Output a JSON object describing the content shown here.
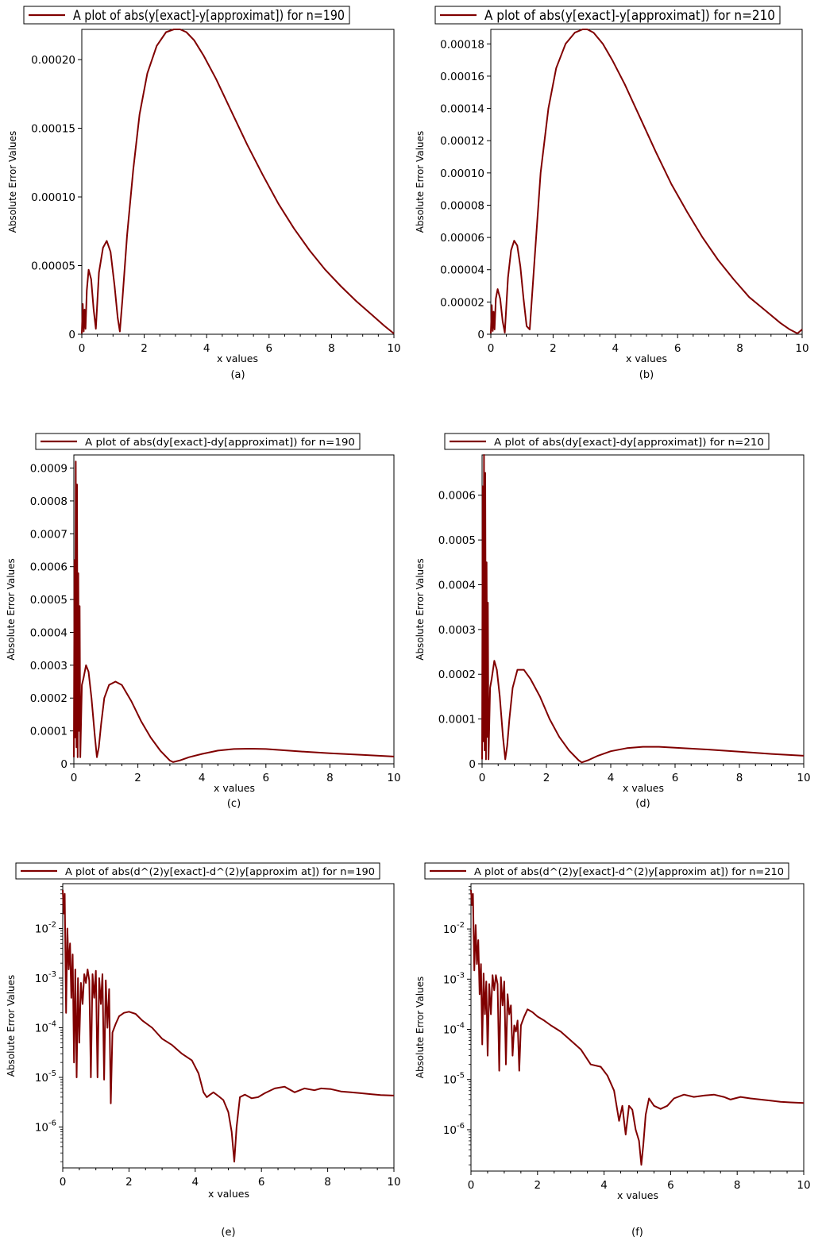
{
  "colors": {
    "series": "#800000",
    "frame": "#000000",
    "background": "#ffffff"
  },
  "chart_data": [
    {
      "type": "line",
      "panel": "(a)",
      "legend": "A plot of abs(y[exact]-y[approximat]) for n=190",
      "legend_placement": "top",
      "xlabel": "x values",
      "ylabel": "Absolute Error Values",
      "xlim": [
        0,
        10
      ],
      "ylim": [
        0,
        0.000222
      ],
      "yscale": "linear",
      "xticks": [
        0,
        2,
        4,
        6,
        8,
        10
      ],
      "xtick_labels": [
        "0",
        "2",
        "4",
        "6",
        "8",
        "10"
      ],
      "yticks": [
        0,
        5e-05,
        0.0001,
        0.00015,
        0.0002
      ],
      "ytick_labels": [
        "0",
        "0.00005",
        "0.00010",
        "0.00015",
        "0.00020"
      ],
      "grid": false,
      "x": [
        0,
        0.03,
        0.06,
        0.09,
        0.12,
        0.16,
        0.22,
        0.3,
        0.38,
        0.45,
        0.55,
        0.68,
        0.8,
        0.92,
        1.05,
        1.15,
        1.22,
        1.3,
        1.45,
        1.65,
        1.85,
        2.1,
        2.4,
        2.7,
        2.95,
        3.15,
        3.35,
        3.6,
        3.9,
        4.3,
        4.8,
        5.3,
        5.8,
        6.3,
        6.8,
        7.3,
        7.8,
        8.3,
        8.8,
        9.3,
        9.7,
        10
      ],
      "y": [
        5e-07,
        2.2e-05,
        2e-06,
        1.8e-05,
        4e-06,
        3.2e-05,
        4.7e-05,
        4e-05,
        1.8e-05,
        4e-06,
        4.5e-05,
        6.3e-05,
        6.8e-05,
        6e-05,
        3.5e-05,
        1.2e-05,
        2e-06,
        2.5e-05,
        7.2e-05,
        0.00012,
        0.00016,
        0.00019,
        0.00021,
        0.00022,
        0.000222,
        0.000222,
        0.00022,
        0.000214,
        0.000203,
        0.000186,
        0.000162,
        0.000138,
        0.000116,
        9.5e-05,
        7.7e-05,
        6.1e-05,
        4.7e-05,
        3.5e-05,
        2.4e-05,
        1.4e-05,
        6e-06,
        5e-07
      ]
    },
    {
      "type": "line",
      "panel": "(b)",
      "legend": "A plot of abs(y[exact]-y[approximat]) for n=210",
      "legend_placement": "top",
      "xlabel": "x values",
      "ylabel": "Absolute Error Values",
      "xlim": [
        0,
        10
      ],
      "ylim": [
        0,
        0.000189
      ],
      "yscale": "linear",
      "xticks": [
        0,
        2,
        4,
        6,
        8,
        10
      ],
      "xtick_labels": [
        "0",
        "2",
        "4",
        "6",
        "8",
        "10"
      ],
      "yticks": [
        0,
        2e-05,
        4e-05,
        6e-05,
        8e-05,
        0.0001,
        0.00012,
        0.00014,
        0.00016,
        0.00018
      ],
      "ytick_labels": [
        "0",
        "0.00002",
        "0.00004",
        "0.00006",
        "0.00008",
        "0.00010",
        "0.00012",
        "0.00014",
        "0.00016",
        "0.00018"
      ],
      "grid": false,
      "x": [
        0,
        0.03,
        0.06,
        0.09,
        0.12,
        0.16,
        0.22,
        0.3,
        0.38,
        0.45,
        0.55,
        0.65,
        0.75,
        0.85,
        0.95,
        1.05,
        1.15,
        1.25,
        1.4,
        1.6,
        1.85,
        2.1,
        2.4,
        2.7,
        2.95,
        3.1,
        3.3,
        3.6,
        3.9,
        4.3,
        4.8,
        5.3,
        5.8,
        6.3,
        6.8,
        7.3,
        7.8,
        8.3,
        8.8,
        9.3,
        9.6,
        9.85,
        10
      ],
      "y": [
        5e-07,
        1.8e-05,
        2e-06,
        1.4e-05,
        3e-06,
        2.2e-05,
        2.8e-05,
        2.2e-05,
        8e-06,
        1e-06,
        3.5e-05,
        5.2e-05,
        5.8e-05,
        5.5e-05,
        4.2e-05,
        2.2e-05,
        5e-06,
        3e-06,
        4.5e-05,
        0.0001,
        0.00014,
        0.000165,
        0.00018,
        0.000187,
        0.000189,
        0.000189,
        0.000187,
        0.00018,
        0.00017,
        0.000155,
        0.000134,
        0.000113,
        9.3e-05,
        7.6e-05,
        6e-05,
        4.6e-05,
        3.4e-05,
        2.3e-05,
        1.5e-05,
        7e-06,
        3e-06,
        5e-07,
        3e-06
      ]
    },
    {
      "type": "line",
      "panel": "(c)",
      "legend": "A plot of abs(dy[exact]-dy[approximat]) for n=190",
      "legend_placement": "top",
      "xlabel": "x values",
      "ylabel": "Absolute Error Values",
      "xlim": [
        0,
        10
      ],
      "ylim": [
        0,
        0.00094
      ],
      "yscale": "linear",
      "xticks": [
        0,
        2,
        4,
        6,
        8,
        10
      ],
      "xtick_labels": [
        "0",
        "2",
        "4",
        "6",
        "8",
        "10"
      ],
      "yticks": [
        0,
        0.0001,
        0.0002,
        0.0003,
        0.0004,
        0.0005,
        0.0006,
        0.0007,
        0.0008,
        0.0009
      ],
      "ytick_labels": [
        "0",
        "0.0001",
        "0.0002",
        "0.0003",
        "0.0004",
        "0.0005",
        "0.0006",
        "0.0007",
        "0.0008",
        "0.0009"
      ],
      "grid": false,
      "x": [
        0,
        0.02,
        0.04,
        0.06,
        0.08,
        0.1,
        0.12,
        0.14,
        0.16,
        0.18,
        0.2,
        0.25,
        0.3,
        0.38,
        0.46,
        0.55,
        0.65,
        0.72,
        0.78,
        0.85,
        0.95,
        1.1,
        1.3,
        1.5,
        1.8,
        2.1,
        2.4,
        2.7,
        3.0,
        3.1,
        3.3,
        3.6,
        4.0,
        4.5,
        5.0,
        5.5,
        6.0,
        7.0,
        8.0,
        9.0,
        10
      ],
      "y": [
        2e-05,
        0.00062,
        8e-05,
        0.00092,
        5e-05,
        0.00085,
        2e-05,
        0.00058,
        0.0001,
        0.00048,
        2e-05,
        0.00024,
        0.00026,
        0.0003,
        0.00028,
        0.0002,
        9e-05,
        2e-05,
        5e-05,
        0.00012,
        0.0002,
        0.00024,
        0.00025,
        0.00024,
        0.00019,
        0.00013,
        8e-05,
        4e-05,
        1e-05,
        5e-06,
        1e-05,
        2e-05,
        3e-05,
        4e-05,
        4.5e-05,
        4.6e-05,
        4.5e-05,
        3.8e-05,
        3.2e-05,
        2.7e-05,
        2.2e-05
      ]
    },
    {
      "type": "line",
      "panel": "(d)",
      "legend": "A plot of abs(dy[exact]-dy[approximat]) for n=210",
      "legend_placement": "top",
      "xlabel": "x values",
      "ylabel": "Absolute Error Values",
      "xlim": [
        0,
        10
      ],
      "ylim": [
        0,
        0.00069
      ],
      "yscale": "linear",
      "xticks": [
        0,
        2,
        4,
        6,
        8,
        10
      ],
      "xtick_labels": [
        "0",
        "2",
        "4",
        "6",
        "8",
        "10"
      ],
      "yticks": [
        0,
        0.0001,
        0.0002,
        0.0003,
        0.0004,
        0.0005,
        0.0006
      ],
      "ytick_labels": [
        "0",
        "0.0001",
        "0.0002",
        "0.0003",
        "0.0004",
        "0.0005",
        "0.0006"
      ],
      "grid": false,
      "x": [
        0,
        0.02,
        0.04,
        0.06,
        0.08,
        0.1,
        0.12,
        0.14,
        0.16,
        0.18,
        0.2,
        0.25,
        0.3,
        0.38,
        0.46,
        0.55,
        0.65,
        0.72,
        0.78,
        0.85,
        0.95,
        1.1,
        1.3,
        1.5,
        1.8,
        2.1,
        2.4,
        2.7,
        3.0,
        3.1,
        3.3,
        3.6,
        4.0,
        4.5,
        5.0,
        5.5,
        6.0,
        7.0,
        8.0,
        9.0,
        10
      ],
      "y": [
        1e-05,
        0.00062,
        5e-05,
        0.00069,
        3e-05,
        0.00065,
        1e-05,
        0.00045,
        6e-05,
        0.00036,
        1e-05,
        0.00017,
        0.00019,
        0.00023,
        0.00021,
        0.00015,
        6e-05,
        1e-05,
        4e-05,
        0.0001,
        0.00017,
        0.00021,
        0.00021,
        0.00019,
        0.00015,
        0.0001,
        6e-05,
        3e-05,
        8e-06,
        3e-06,
        8e-06,
        1.8e-05,
        2.8e-05,
        3.5e-05,
        3.8e-05,
        3.8e-05,
        3.6e-05,
        3.2e-05,
        2.7e-05,
        2.2e-05,
        1.8e-05
      ]
    },
    {
      "type": "line",
      "panel": "(e)",
      "legend": "A plot of abs(d^(2)y[exact]-d^(2)y[approxim at]) for n=190",
      "legend_placement": "top",
      "xlabel": "x values",
      "ylabel": "Absolute Error Values",
      "xlim": [
        0,
        10
      ],
      "ylim": [
        1.5e-07,
        0.08
      ],
      "yscale": "log",
      "xticks": [
        0,
        2,
        4,
        6,
        8,
        10
      ],
      "xtick_labels": [
        "0",
        "2",
        "4",
        "6",
        "8",
        "10"
      ],
      "yticks": [
        1e-06,
        1e-05,
        0.0001,
        0.001,
        0.01
      ],
      "ytick_labels": [
        "10",
        "10",
        "10",
        "10",
        "10"
      ],
      "ytick_exponents": [
        "-6",
        "-5",
        "-4",
        "-3",
        "-2"
      ],
      "grid": false,
      "x": [
        0,
        0.03,
        0.06,
        0.1,
        0.14,
        0.18,
        0.22,
        0.26,
        0.3,
        0.34,
        0.38,
        0.42,
        0.46,
        0.5,
        0.55,
        0.6,
        0.65,
        0.7,
        0.75,
        0.8,
        0.85,
        0.9,
        0.95,
        1.0,
        1.05,
        1.1,
        1.15,
        1.2,
        1.25,
        1.3,
        1.35,
        1.4,
        1.45,
        1.5,
        1.6,
        1.7,
        1.85,
        2.0,
        2.2,
        2.4,
        2.7,
        3.0,
        3.3,
        3.6,
        3.9,
        4.1,
        4.25,
        4.35,
        4.45,
        4.55,
        4.7,
        4.85,
        5.0,
        5.1,
        5.18,
        5.25,
        5.35,
        5.5,
        5.7,
        5.9,
        6.1,
        6.4,
        6.7,
        7.0,
        7.3,
        7.6,
        7.8,
        8.1,
        8.4,
        8.7,
        9.0,
        9.3,
        9.6,
        10
      ],
      "y": [
        0.06,
        0.02,
        0.05,
        0.0002,
        0.01,
        0.0015,
        0.005,
        0.0004,
        0.003,
        2e-05,
        0.0015,
        1e-05,
        0.001,
        5e-05,
        0.0008,
        0.0003,
        0.0012,
        0.0008,
        0.0015,
        0.0009,
        1e-05,
        0.0012,
        0.0004,
        0.0014,
        1e-05,
        0.001,
        0.0003,
        0.0012,
        9e-06,
        0.0009,
        0.0001,
        0.0006,
        3e-06,
        8e-05,
        0.00012,
        0.00017,
        0.0002,
        0.00021,
        0.00019,
        0.00014,
        0.0001,
        6e-05,
        4.5e-05,
        3e-05,
        2.2e-05,
        1.2e-05,
        5e-06,
        4e-06,
        4.5e-06,
        5e-06,
        4.2e-06,
        3.5e-06,
        2e-06,
        8e-07,
        2e-07,
        1e-06,
        4e-06,
        4.5e-06,
        3.8e-06,
        4e-06,
        4.8e-06,
        6e-06,
        6.5e-06,
        5e-06,
        6e-06,
        5.5e-06,
        6e-06,
        5.8e-06,
        5.2e-06,
        5e-06,
        4.8e-06,
        4.6e-06,
        4.4e-06,
        4.3e-06
      ]
    },
    {
      "type": "line",
      "panel": "(f)",
      "legend": "A plot of abs(d^(2)y[exact]-d^(2)y[approxim at]) for n=210",
      "legend_placement": "top",
      "xlabel": "x values",
      "ylabel": "Absolute Error Values",
      "xlim": [
        0,
        10
      ],
      "ylim": [
        1.5e-07,
        0.08
      ],
      "yscale": "log",
      "xticks": [
        0,
        2,
        4,
        6,
        8,
        10
      ],
      "xtick_labels": [
        "0",
        "2",
        "4",
        "6",
        "8",
        "10"
      ],
      "yticks": [
        1e-06,
        1e-05,
        0.0001,
        0.001,
        0.01
      ],
      "ytick_labels": [
        "10",
        "10",
        "10",
        "10",
        "10"
      ],
      "ytick_exponents": [
        "-6",
        "-5",
        "-4",
        "-3",
        "-2"
      ],
      "grid": false,
      "x": [
        0,
        0.03,
        0.06,
        0.1,
        0.14,
        0.18,
        0.22,
        0.26,
        0.3,
        0.34,
        0.38,
        0.42,
        0.46,
        0.5,
        0.55,
        0.6,
        0.65,
        0.7,
        0.75,
        0.8,
        0.85,
        0.9,
        0.95,
        1.0,
        1.05,
        1.1,
        1.15,
        1.2,
        1.25,
        1.3,
        1.35,
        1.4,
        1.45,
        1.5,
        1.6,
        1.7,
        1.85,
        2.0,
        2.2,
        2.4,
        2.7,
        3.0,
        3.3,
        3.6,
        3.9,
        4.1,
        4.3,
        4.45,
        4.55,
        4.65,
        4.75,
        4.85,
        4.95,
        5.05,
        5.12,
        5.18,
        5.25,
        5.35,
        5.5,
        5.7,
        5.9,
        6.1,
        6.4,
        6.7,
        7.0,
        7.3,
        7.6,
        7.8,
        8.1,
        8.4,
        8.7,
        9.0,
        9.3,
        9.6,
        10
      ],
      "y": [
        0.06,
        0.03,
        0.05,
        0.0015,
        0.012,
        0.002,
        0.006,
        0.0005,
        0.002,
        5e-05,
        0.0013,
        0.0002,
        0.0009,
        3e-05,
        0.0008,
        0.0002,
        0.0012,
        0.0006,
        0.0012,
        0.0008,
        1.5e-05,
        0.0011,
        0.0003,
        0.0009,
        2e-05,
        0.0005,
        0.0002,
        0.0003,
        3e-05,
        0.00012,
        9e-05,
        0.00015,
        1.5e-05,
        0.00012,
        0.00018,
        0.00025,
        0.00022,
        0.00018,
        0.00015,
        0.00012,
        9e-05,
        6e-05,
        4e-05,
        2e-05,
        1.8e-05,
        1.2e-05,
        6e-06,
        1.5e-06,
        3e-06,
        8e-07,
        3e-06,
        2.5e-06,
        1e-06,
        6e-07,
        2e-07,
        5e-07,
        2e-06,
        4.2e-06,
        3e-06,
        2.6e-06,
        3e-06,
        4.2e-06,
        5e-06,
        4.5e-06,
        4.8e-06,
        5e-06,
        4.5e-06,
        4e-06,
        4.5e-06,
        4.2e-06,
        4e-06,
        3.8e-06,
        3.6e-06,
        3.5e-06,
        3.4e-06
      ]
    }
  ]
}
